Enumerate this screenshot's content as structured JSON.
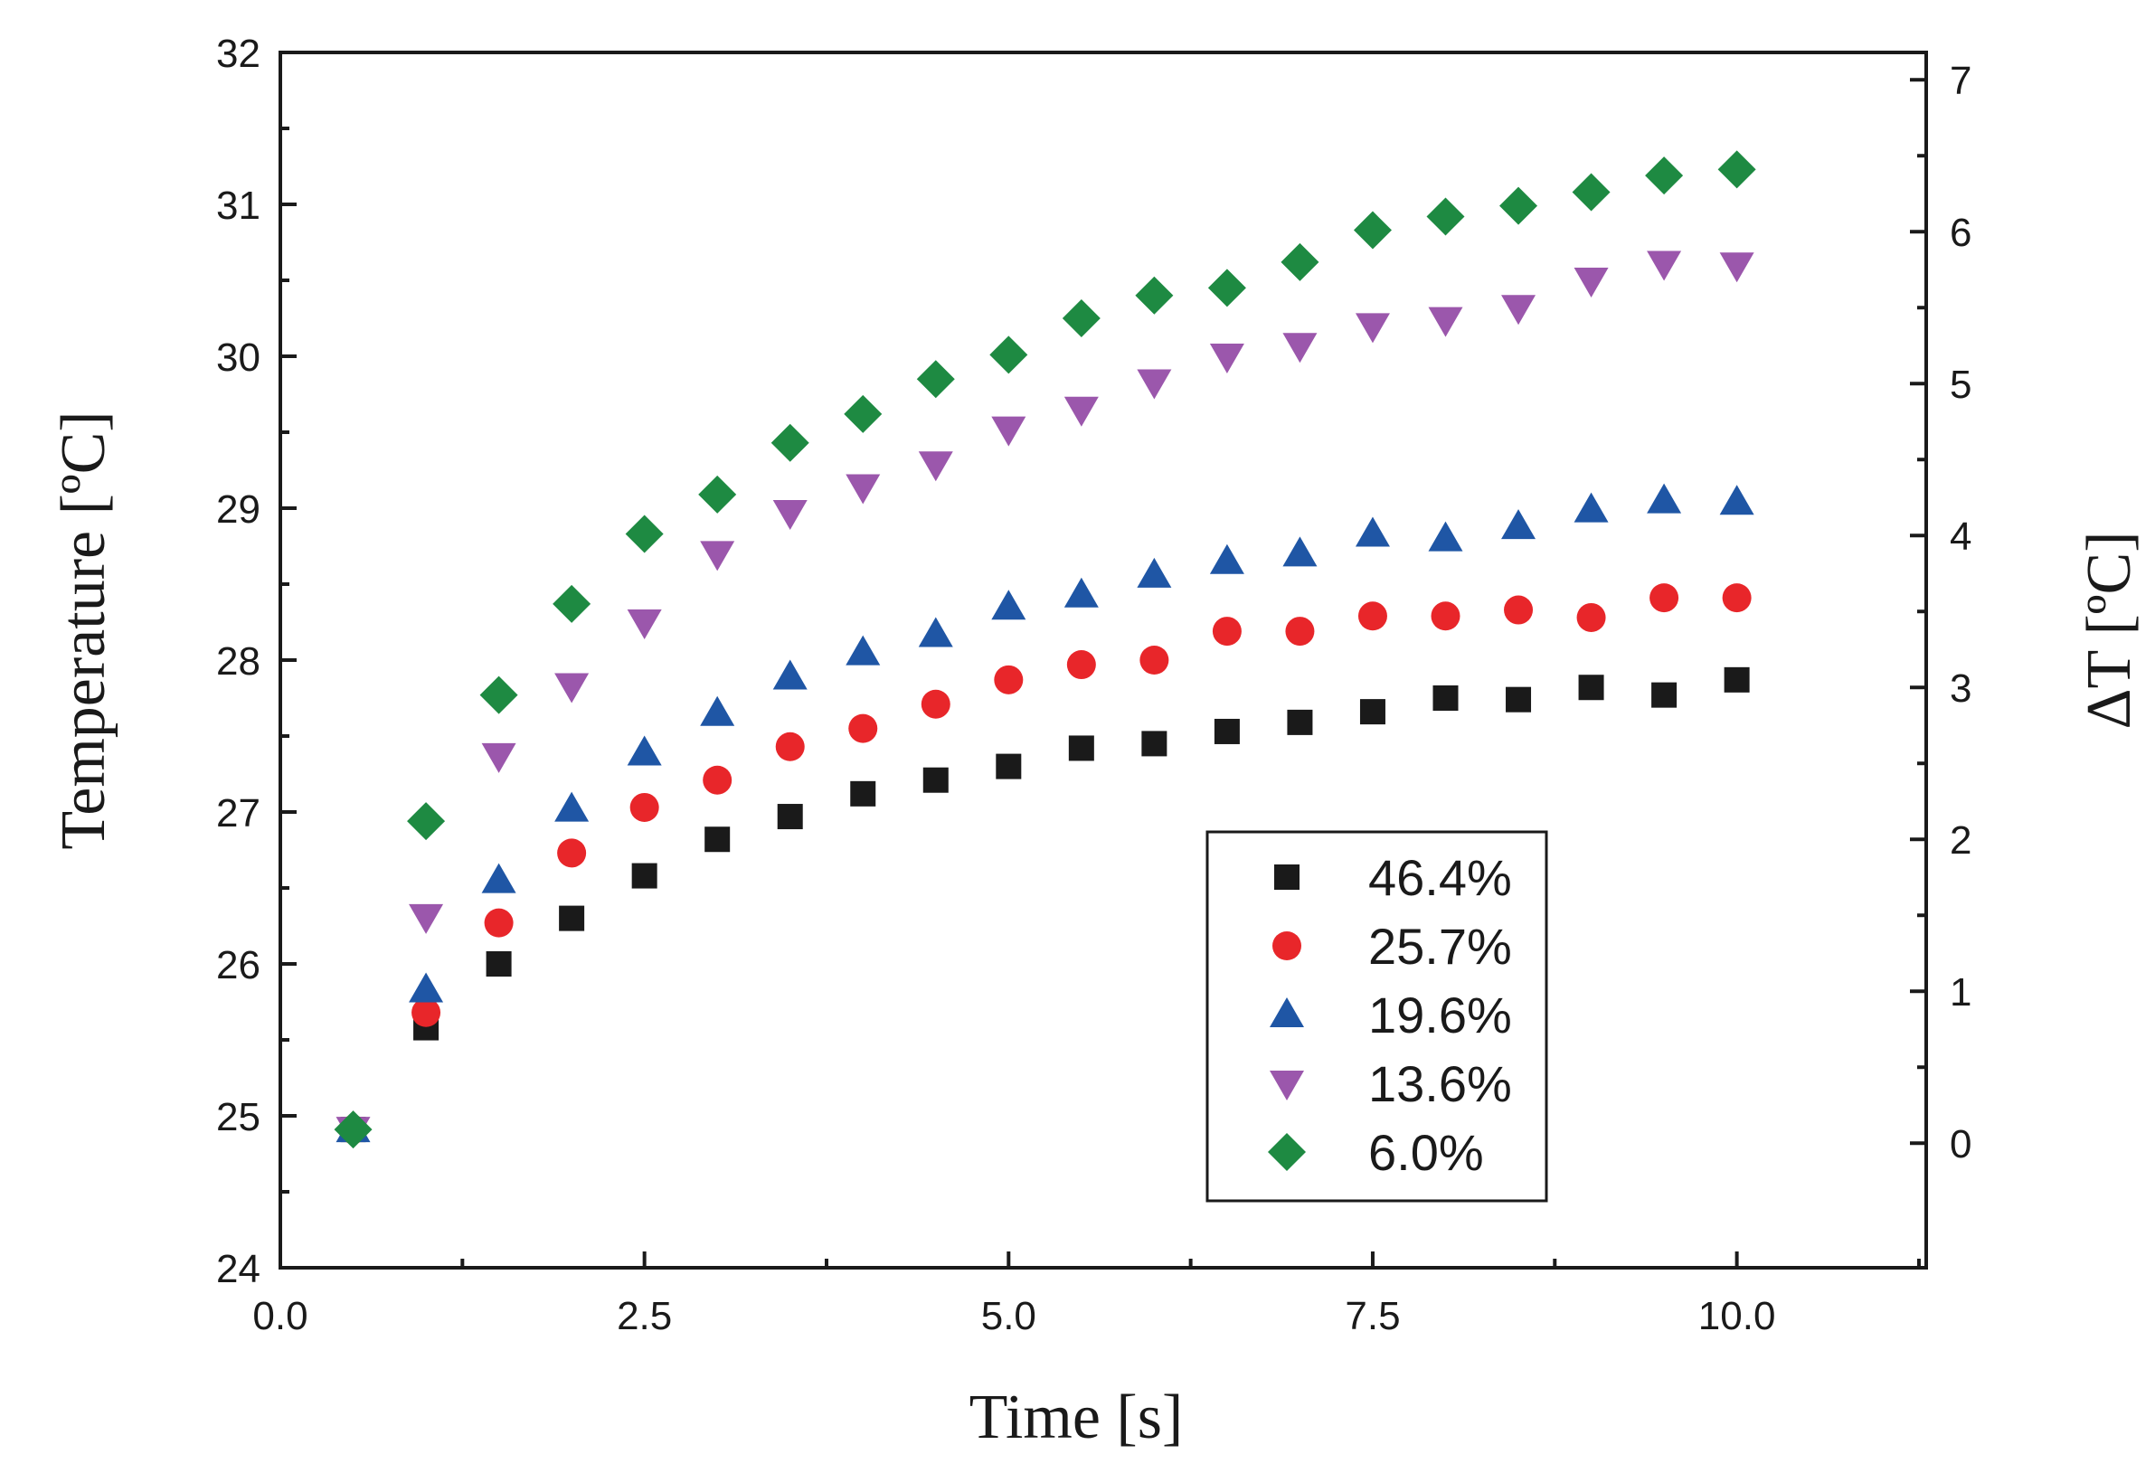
{
  "chart_data": {
    "type": "scatter",
    "title": "",
    "xlabel": "Time [s]",
    "ylabel": "Temperature [ºC]",
    "y2label": "ΔT [ºC]",
    "xlim": [
      0,
      11.3
    ],
    "ylim": [
      24,
      32
    ],
    "y2lim": [
      -0.82,
      7.18
    ],
    "xticks": [
      "0.0",
      "2.5",
      "5.0",
      "7.5",
      "10.0"
    ],
    "xtick_values": [
      0,
      2.5,
      5,
      7.5,
      10
    ],
    "yticks": [
      "24",
      "25",
      "26",
      "27",
      "28",
      "29",
      "30",
      "31",
      "32"
    ],
    "ytick_values": [
      24,
      25,
      26,
      27,
      28,
      29,
      30,
      31,
      32
    ],
    "y2ticks": [
      "0",
      "1",
      "2",
      "3",
      "4",
      "5",
      "6",
      "7"
    ],
    "y2tick_values": [
      0,
      1,
      2,
      3,
      4,
      5,
      6,
      7
    ],
    "grid": false,
    "legend_position": "bottom-right",
    "x": [
      0.5,
      1.0,
      1.5,
      2.0,
      2.5,
      3.0,
      3.5,
      4.0,
      4.5,
      5.0,
      5.5,
      6.0,
      6.5,
      7.0,
      7.5,
      8.0,
      8.5,
      9.0,
      9.5,
      10.0
    ],
    "series": [
      {
        "name": "46.4%",
        "marker": "square",
        "color": "#1a1a1a",
        "values": [
          24.91,
          25.58,
          26.0,
          26.3,
          26.58,
          26.82,
          26.97,
          27.12,
          27.21,
          27.3,
          27.42,
          27.45,
          27.53,
          27.59,
          27.66,
          27.75,
          27.74,
          27.82,
          27.77,
          27.87
        ]
      },
      {
        "name": "25.7%",
        "marker": "circle",
        "color": "#e8262a",
        "values": [
          24.91,
          25.68,
          26.27,
          26.73,
          27.03,
          27.21,
          27.43,
          27.55,
          27.71,
          27.87,
          27.97,
          28.0,
          28.19,
          28.19,
          28.29,
          28.29,
          28.33,
          28.28,
          28.41,
          28.41
        ]
      },
      {
        "name": "19.6%",
        "marker": "triangle-up",
        "color": "#1f56a5",
        "values": [
          24.91,
          25.83,
          26.55,
          27.02,
          27.39,
          27.65,
          27.89,
          28.05,
          28.17,
          28.35,
          28.43,
          28.56,
          28.65,
          28.7,
          28.83,
          28.8,
          28.88,
          28.99,
          29.05,
          29.04
        ]
      },
      {
        "name": "13.6%",
        "marker": "triangle-down",
        "color": "#9b57ac",
        "values": [
          24.91,
          26.31,
          27.37,
          27.83,
          28.25,
          28.7,
          28.97,
          29.14,
          29.29,
          29.52,
          29.65,
          29.83,
          30.0,
          30.07,
          30.2,
          30.24,
          30.32,
          30.5,
          30.61,
          30.6
        ]
      },
      {
        "name": "6.0%",
        "marker": "diamond",
        "color": "#1e8a42",
        "values": [
          24.91,
          26.94,
          27.77,
          28.37,
          28.83,
          29.09,
          29.43,
          29.62,
          29.85,
          30.01,
          30.25,
          30.4,
          30.45,
          30.62,
          30.83,
          30.92,
          30.99,
          31.08,
          31.19,
          31.23
        ]
      }
    ]
  }
}
